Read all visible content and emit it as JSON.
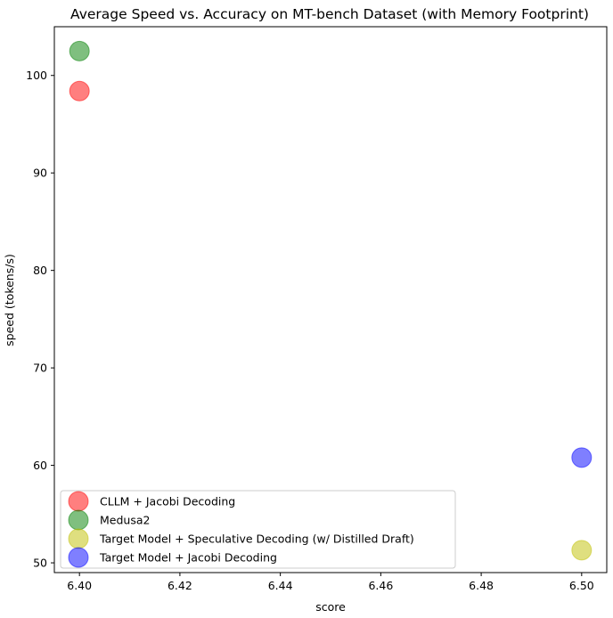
{
  "chart_data": {
    "type": "scatter",
    "title": "Average Speed vs. Accuracy on MT-bench Dataset (with Memory Footprint)",
    "xlabel": "score",
    "ylabel": "speed (tokens/s)",
    "xlim": [
      6.395,
      6.505
    ],
    "ylim": [
      49,
      105
    ],
    "xticks": [
      6.4,
      6.42,
      6.44,
      6.46,
      6.48,
      6.5
    ],
    "xtick_labels": [
      "6.40",
      "6.42",
      "6.44",
      "6.46",
      "6.48",
      "6.50"
    ],
    "yticks": [
      50,
      60,
      70,
      80,
      90,
      100
    ],
    "ytick_labels": [
      "50",
      "60",
      "70",
      "80",
      "90",
      "100"
    ],
    "grid": false,
    "legend_position": "lower-left",
    "series": [
      {
        "name": "CLLM + Jacobi Decoding",
        "color": "#ff0000",
        "x": [
          6.4
        ],
        "y": [
          98.4
        ]
      },
      {
        "name": "Medusa2",
        "color": "#008000",
        "x": [
          6.4
        ],
        "y": [
          102.5
        ]
      },
      {
        "name": "Target Model + Speculative Decoding (w/ Distilled Draft)",
        "color": "#bfbf00",
        "x": [
          6.5
        ],
        "y": [
          51.3
        ]
      },
      {
        "name": "Target Model + Jacobi Decoding",
        "color": "#0000ff",
        "x": [
          6.5
        ],
        "y": [
          60.8
        ]
      }
    ]
  }
}
